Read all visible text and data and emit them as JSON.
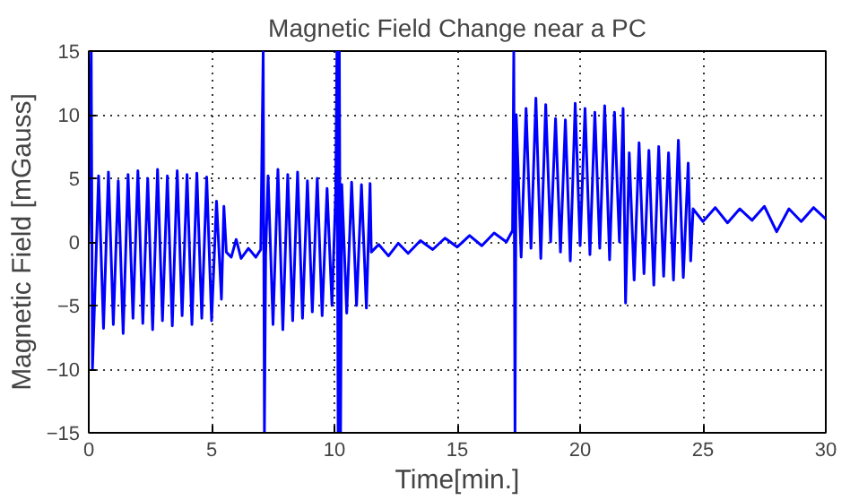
{
  "chart_data": {
    "type": "line",
    "title": "Magnetic Field Change near a PC",
    "xlabel": "Time[min.]",
    "ylabel": "Magnetic Field [mGauss]",
    "series": [
      {
        "color": "#0000ff",
        "x": [
          0,
          0.1,
          0.15,
          0.3,
          0.4,
          0.6,
          0.8,
          1.0,
          1.2,
          1.4,
          1.6,
          1.8,
          2.0,
          2.2,
          2.4,
          2.6,
          2.8,
          3.0,
          3.2,
          3.4,
          3.6,
          3.8,
          4.0,
          4.2,
          4.4,
          4.6,
          4.8,
          5.0,
          5.2,
          5.4,
          5.5,
          5.6,
          5.8,
          6.0,
          6.2,
          6.5,
          6.8,
          7.0,
          7.1,
          7.15,
          7.2,
          7.3,
          7.5,
          7.7,
          7.9,
          8.1,
          8.3,
          8.5,
          8.7,
          8.9,
          9.1,
          9.3,
          9.5,
          9.7,
          9.9,
          10.05,
          10.1,
          10.15,
          10.2,
          10.25,
          10.3,
          10.5,
          10.7,
          10.9,
          11.1,
          11.3,
          11.45,
          11.5,
          11.8,
          12.2,
          12.6,
          13.0,
          13.5,
          14.0,
          14.5,
          15.0,
          15.5,
          16.0,
          16.5,
          17.0,
          17.25,
          17.3,
          17.35,
          17.4,
          17.6,
          17.8,
          18.0,
          18.2,
          18.4,
          18.6,
          18.8,
          19.0,
          19.2,
          19.4,
          19.6,
          19.8,
          20.0,
          20.2,
          20.4,
          20.6,
          20.8,
          21.0,
          21.2,
          21.4,
          21.6,
          21.75,
          21.85,
          22.0,
          22.2,
          22.4,
          22.6,
          22.8,
          23.0,
          23.2,
          23.4,
          23.6,
          23.8,
          24.0,
          24.2,
          24.4,
          24.5,
          24.6,
          25,
          25.5,
          26,
          26.5,
          27,
          27.5,
          28,
          28.5,
          29,
          29.5,
          30
        ],
        "values": [
          0,
          15,
          -10,
          -1,
          5.2,
          -6.8,
          5.5,
          -6.5,
          4.8,
          -7.2,
          5.3,
          -6.0,
          5.6,
          -6.4,
          5.0,
          -6.9,
          5.7,
          -6.2,
          5.2,
          -6.6,
          5.6,
          -5.8,
          5.3,
          -6.5,
          5.4,
          -6.0,
          5.1,
          -6.2,
          3.2,
          -4.5,
          2.8,
          -0.8,
          -1.2,
          0.2,
          -1.3,
          -0.5,
          -1.2,
          -0.6,
          15,
          -15,
          -1,
          5.2,
          -6.5,
          5.7,
          -6.9,
          5.3,
          -6.2,
          5.5,
          -6.0,
          4.8,
          -5.5,
          5.0,
          -5.8,
          4.2,
          -5.0,
          3.8,
          15,
          -15,
          15,
          -15,
          4.5,
          -5.6,
          4.7,
          -5.0,
          4.5,
          -5.2,
          4.6,
          -0.8,
          -0.2,
          -1.1,
          -0.1,
          -0.9,
          0.1,
          -0.6,
          0.3,
          -0.4,
          0.5,
          -0.3,
          0.7,
          0.0,
          0.9,
          15,
          -15,
          10,
          -1.2,
          10.5,
          -0.5,
          11.3,
          -1.3,
          10.8,
          0.0,
          9.7,
          -0.8,
          9.6,
          -1.5,
          10.9,
          -0.3,
          10.5,
          -1.0,
          10.2,
          -0.5,
          10.7,
          -1.4,
          10.2,
          0.0,
          10.5,
          -4.8,
          7.0,
          -3.0,
          7.8,
          -2.5,
          7.2,
          -3.4,
          7.5,
          -2.7,
          7.0,
          -3.0,
          8.0,
          -2.8,
          6.2,
          -1.5,
          2.6,
          1.6,
          2.7,
          1.5,
          2.6,
          1.7,
          2.8,
          0.8,
          2.6,
          1.6,
          2.7,
          1.8
        ]
      }
    ],
    "xlim": [
      0,
      30
    ],
    "ylim": [
      -15,
      15
    ],
    "xticks": [
      0,
      5,
      10,
      15,
      20,
      25,
      30
    ],
    "yticks": [
      -15,
      -10,
      -5,
      0,
      5,
      10,
      15
    ],
    "grid": true,
    "line_style": "solid"
  }
}
